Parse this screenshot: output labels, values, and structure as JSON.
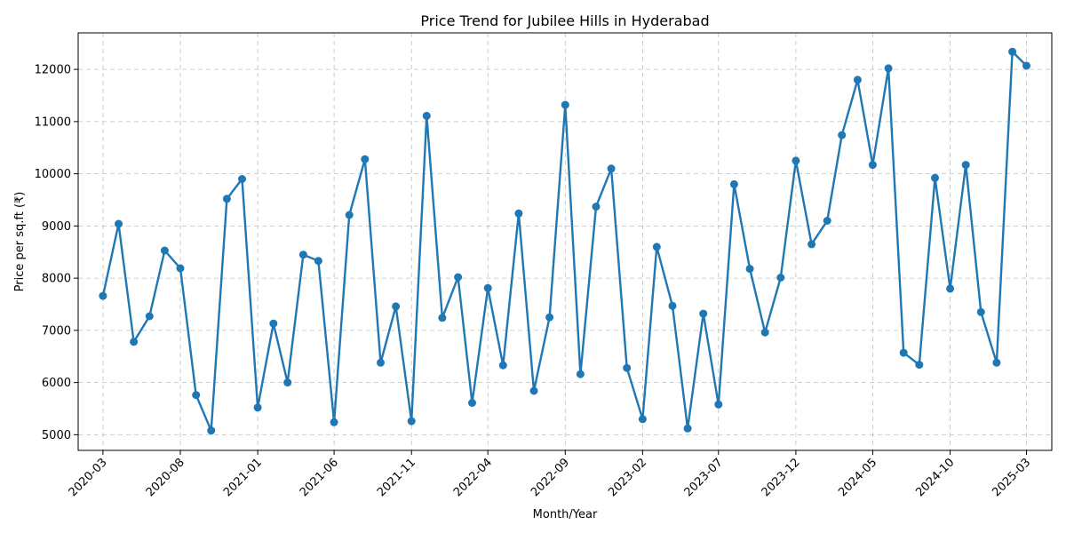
{
  "chart_data": {
    "type": "line",
    "title": "Price Trend for Jubilee Hills in Hyderabad",
    "xlabel": "Month/Year",
    "ylabel": "Price per sq.ft (₹)",
    "grid": true,
    "color": "#1f77b4",
    "xlim": [
      "2020-01-12",
      "2025-04-20"
    ],
    "ylim": [
      4700,
      12700
    ],
    "x_ticks": [
      "2020-03",
      "2020-08",
      "2021-01",
      "2021-06",
      "2021-11",
      "2022-04",
      "2022-09",
      "2023-02",
      "2023-07",
      "2023-12",
      "2024-05",
      "2024-10",
      "2025-03"
    ],
    "y_ticks": [
      5000,
      6000,
      7000,
      8000,
      9000,
      10000,
      11000,
      12000
    ],
    "x": [
      "2020-03-01",
      "2020-04-01",
      "2020-05-01",
      "2020-06-01",
      "2020-07-01",
      "2020-08-01",
      "2020-09-01",
      "2020-10-01",
      "2020-11-01",
      "2020-12-01",
      "2021-01-01",
      "2021-02-01",
      "2021-03-01",
      "2021-04-01",
      "2021-05-01",
      "2021-06-01",
      "2021-07-01",
      "2021-08-01",
      "2021-09-01",
      "2021-10-01",
      "2021-11-01",
      "2021-12-01",
      "2022-01-01",
      "2022-02-01",
      "2022-03-01",
      "2022-04-01",
      "2022-05-01",
      "2022-06-01",
      "2022-07-01",
      "2022-08-01",
      "2022-09-01",
      "2022-10-01",
      "2022-11-01",
      "2022-12-01",
      "2023-01-01",
      "2023-02-01",
      "2023-03-01",
      "2023-04-01",
      "2023-05-01",
      "2023-06-01",
      "2023-07-01",
      "2023-08-01",
      "2023-09-01",
      "2023-10-01",
      "2023-11-01",
      "2023-12-01",
      "2024-01-01",
      "2024-02-01",
      "2024-03-01",
      "2024-04-01",
      "2024-05-01",
      "2024-06-01",
      "2024-07-01",
      "2024-08-01",
      "2024-09-01",
      "2024-10-01",
      "2024-11-01",
      "2024-12-01",
      "2025-01-01",
      "2025-02-01",
      "2025-03-01"
    ],
    "values": [
      7660,
      9040,
      6780,
      7270,
      8530,
      8190,
      5760,
      5080,
      9520,
      9900,
      5520,
      7130,
      6000,
      8450,
      8330,
      5240,
      9210,
      10280,
      6380,
      7460,
      5260,
      11110,
      7240,
      8020,
      5610,
      7810,
      6330,
      9240,
      5840,
      7250,
      11320,
      6160,
      9370,
      10100,
      6280,
      5300,
      8600,
      7470,
      5120,
      7320,
      5580,
      9800,
      8180,
      6960,
      8010,
      10250,
      8650,
      9100,
      10740,
      11800,
      10170,
      12020,
      6570,
      6340,
      9920,
      7800,
      10170,
      7350,
      6380,
      12340,
      12070
    ]
  }
}
